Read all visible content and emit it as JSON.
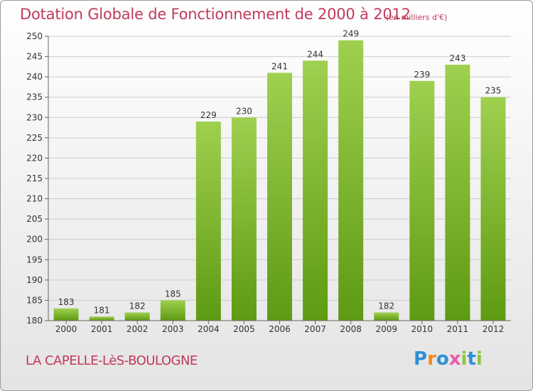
{
  "header": {
    "title": "Dotation Globale de Fonctionnement de 2000 à 2012",
    "subtitle": "(en milliers d'€)"
  },
  "footer": {
    "commune": "LA CAPELLE-LèS-BOULOGNE",
    "logo": "Proxiti"
  },
  "colors": {
    "bar_light": "#9fd04f",
    "bar_dark": "#5e9a13",
    "text_accent": "#c03a5b",
    "grid": "#cccccc"
  },
  "chart_data": {
    "type": "bar",
    "categories": [
      "2000",
      "2001",
      "2002",
      "2003",
      "2004",
      "2005",
      "2006",
      "2007",
      "2008",
      "2009",
      "2010",
      "2011",
      "2012"
    ],
    "values": [
      183,
      181,
      182,
      185,
      229,
      230,
      241,
      244,
      249,
      182,
      239,
      243,
      235
    ],
    "title": "Dotation Globale de Fonctionnement de 2000 à 2012",
    "subtitle": "(en milliers d'€)",
    "xlabel": "",
    "ylabel": "",
    "ylim": [
      180,
      250
    ],
    "yticks": [
      180,
      185,
      190,
      195,
      200,
      205,
      210,
      215,
      220,
      225,
      230,
      235,
      240,
      245,
      250
    ],
    "grid": true,
    "legend": "none"
  }
}
